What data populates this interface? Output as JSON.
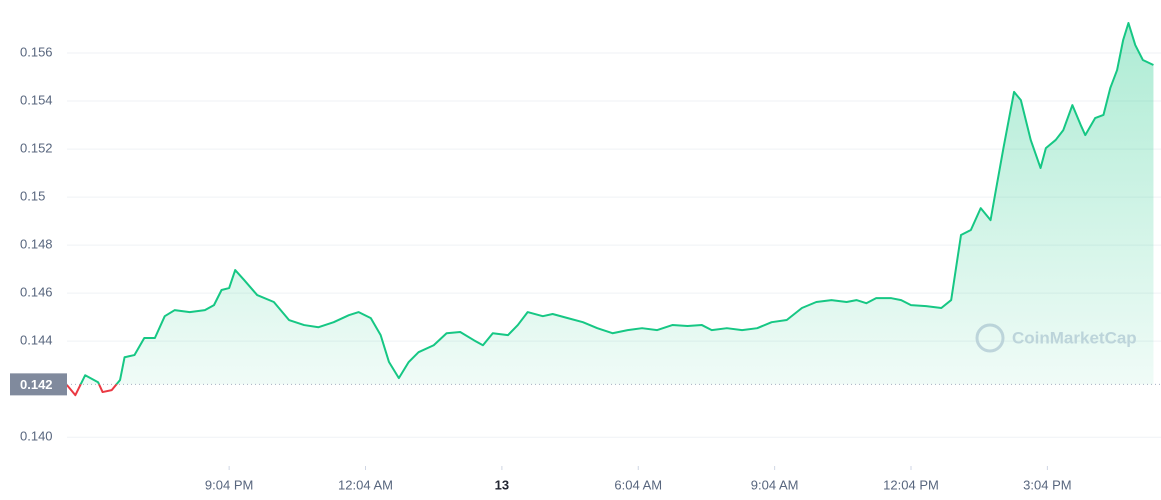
{
  "chart_data": {
    "type": "line",
    "watermark": "CoinMarketCap",
    "x": [
      1050,
      1061,
      1074,
      1091,
      1097,
      1109,
      1120,
      1126,
      1139,
      1152,
      1166,
      1179,
      1192,
      1212,
      1232,
      1244,
      1254,
      1264,
      1272,
      1284,
      1301,
      1323,
      1343,
      1363,
      1382,
      1402,
      1422,
      1435,
      1451,
      1464,
      1475,
      1488,
      1501,
      1514,
      1534,
      1551,
      1569,
      1587,
      1599,
      1612,
      1632,
      1645,
      1658,
      1678,
      1691,
      1711,
      1731,
      1750,
      1770,
      1790,
      1809,
      1829,
      1849,
      1869,
      1888,
      1901,
      1921,
      1941,
      1961,
      1980,
      2000,
      2020,
      2039,
      2059,
      2079,
      2092,
      2105,
      2118,
      2138,
      2151,
      2164,
      2184,
      2204,
      2217,
      2230,
      2243,
      2256,
      2269,
      2276,
      2286,
      2300,
      2309,
      2322,
      2335,
      2342,
      2355,
      2365,
      2377,
      2388,
      2394,
      2407,
      2418,
      2427,
      2436,
      2444,
      2451,
      2460,
      2470,
      2484
    ],
    "series": [
      {
        "up_color": "#16c784",
        "down_color": "#ea3943",
        "values": [
          0.14217,
          0.14175,
          0.14258,
          0.14229,
          0.14188,
          0.14196,
          0.14238,
          0.14333,
          0.14342,
          0.14413,
          0.14413,
          0.14504,
          0.14529,
          0.14521,
          0.14529,
          0.1455,
          0.14613,
          0.14621,
          0.14696,
          0.14654,
          0.14592,
          0.14563,
          0.14488,
          0.14467,
          0.14458,
          0.14479,
          0.14508,
          0.14521,
          0.14496,
          0.14425,
          0.14313,
          0.14246,
          0.14313,
          0.14354,
          0.14383,
          0.14433,
          0.14438,
          0.14404,
          0.14383,
          0.14433,
          0.14425,
          0.14467,
          0.14521,
          0.14504,
          0.14513,
          0.14496,
          0.14479,
          0.14454,
          0.14433,
          0.14446,
          0.14454,
          0.14446,
          0.14467,
          0.14463,
          0.14467,
          0.14446,
          0.14454,
          0.14446,
          0.14454,
          0.14479,
          0.14488,
          0.14538,
          0.14563,
          0.14571,
          0.14563,
          0.14571,
          0.14558,
          0.14579,
          0.14579,
          0.14571,
          0.1455,
          0.14546,
          0.14538,
          0.14571,
          0.14842,
          0.14863,
          0.14954,
          0.14904,
          0.15029,
          0.15204,
          0.15438,
          0.15404,
          0.15238,
          0.15121,
          0.15204,
          0.15238,
          0.15279,
          0.15383,
          0.153,
          0.15258,
          0.15329,
          0.15342,
          0.15454,
          0.15529,
          0.15654,
          0.15725,
          0.15633,
          0.15571,
          0.1555
        ]
      }
    ],
    "reference_line": {
      "value": 0.1422,
      "label": "0.142"
    },
    "xlim": [
      1050,
      2490
    ],
    "xticks": [
      {
        "value": 1264,
        "label": "9:04 PM"
      },
      {
        "value": 1444,
        "label": "12:04 AM"
      },
      {
        "value": 1624,
        "label": "13"
      },
      {
        "value": 1804,
        "label": "6:04 AM"
      },
      {
        "value": 1984,
        "label": "9:04 AM"
      },
      {
        "value": 2164,
        "label": "12:04 PM"
      },
      {
        "value": 2344,
        "label": "3:04 PM"
      }
    ],
    "ylim": [
      0.1388,
      0.158
    ],
    "yticks": [
      {
        "value": 0.14,
        "label": "0.140"
      },
      0.144,
      0.146,
      0.148,
      0.15,
      0.152,
      0.154,
      0.156
    ],
    "grid": true
  }
}
